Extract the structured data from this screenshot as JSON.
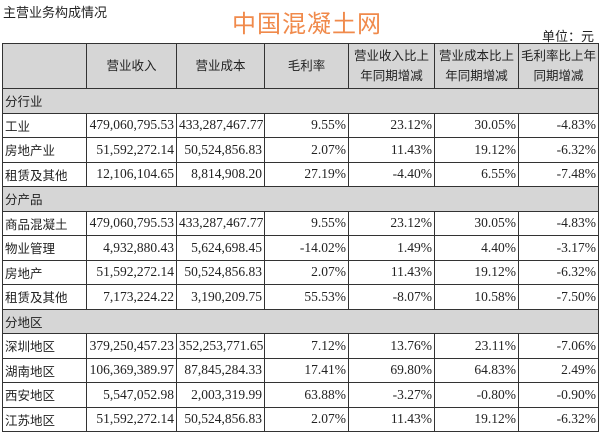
{
  "title": "主营业务构成情况",
  "unit": "单位：元",
  "headers": [
    "",
    "营业收入",
    "营业成本",
    "毛利率",
    "营业收入比上年同期增减",
    "营业成本比上年同期增减",
    "毛利率比上年同期增减"
  ],
  "sections": [
    {
      "label": "分行业",
      "rows": [
        [
          "工业",
          "479,060,795.53",
          "433,287,467.77",
          "9.55%",
          "23.12%",
          "30.05%",
          "-4.83%"
        ],
        [
          "房地产业",
          "51,592,272.14",
          "50,524,856.83",
          "2.07%",
          "11.43%",
          "19.12%",
          "-6.32%"
        ],
        [
          "租赁及其他",
          "12,106,104.65",
          "8,814,908.20",
          "27.19%",
          "-4.40%",
          "6.55%",
          "-7.48%"
        ]
      ]
    },
    {
      "label": "分产品",
      "rows": [
        [
          "商品混凝土",
          "479,060,795.53",
          "433,287,467.77",
          "9.55%",
          "23.12%",
          "30.05%",
          "-4.83%"
        ],
        [
          "物业管理",
          "4,932,880.43",
          "5,624,698.45",
          "-14.02%",
          "1.49%",
          "4.40%",
          "-3.17%"
        ],
        [
          "房地产",
          "51,592,272.14",
          "50,524,856.83",
          "2.07%",
          "11.43%",
          "19.12%",
          "-6.32%"
        ],
        [
          "租赁及其他",
          "7,173,224.22",
          "3,190,209.75",
          "55.53%",
          "-8.07%",
          "10.58%",
          "-7.50%"
        ]
      ]
    },
    {
      "label": "分地区",
      "rows": [
        [
          "深圳地区",
          "379,250,457.23",
          "352,253,771.65",
          "7.12%",
          "13.76%",
          "23.11%",
          "-7.06%"
        ],
        [
          "湖南地区",
          "106,369,389.97",
          "87,845,284.33",
          "17.41%",
          "69.80%",
          "64.83%",
          "2.49%"
        ],
        [
          "西安地区",
          "5,547,052.98",
          "2,003,319.99",
          "63.88%",
          "-3.27%",
          "-0.80%",
          "-0.90%"
        ],
        [
          "江苏地区",
          "51,592,272.14",
          "50,524,856.83",
          "2.07%",
          "11.43%",
          "19.12%",
          "-6.32%"
        ]
      ]
    }
  ],
  "watermark": "中国混凝土网",
  "colors": {
    "header_bg": "#d6d6d6",
    "watermark": "#f08a4b"
  }
}
